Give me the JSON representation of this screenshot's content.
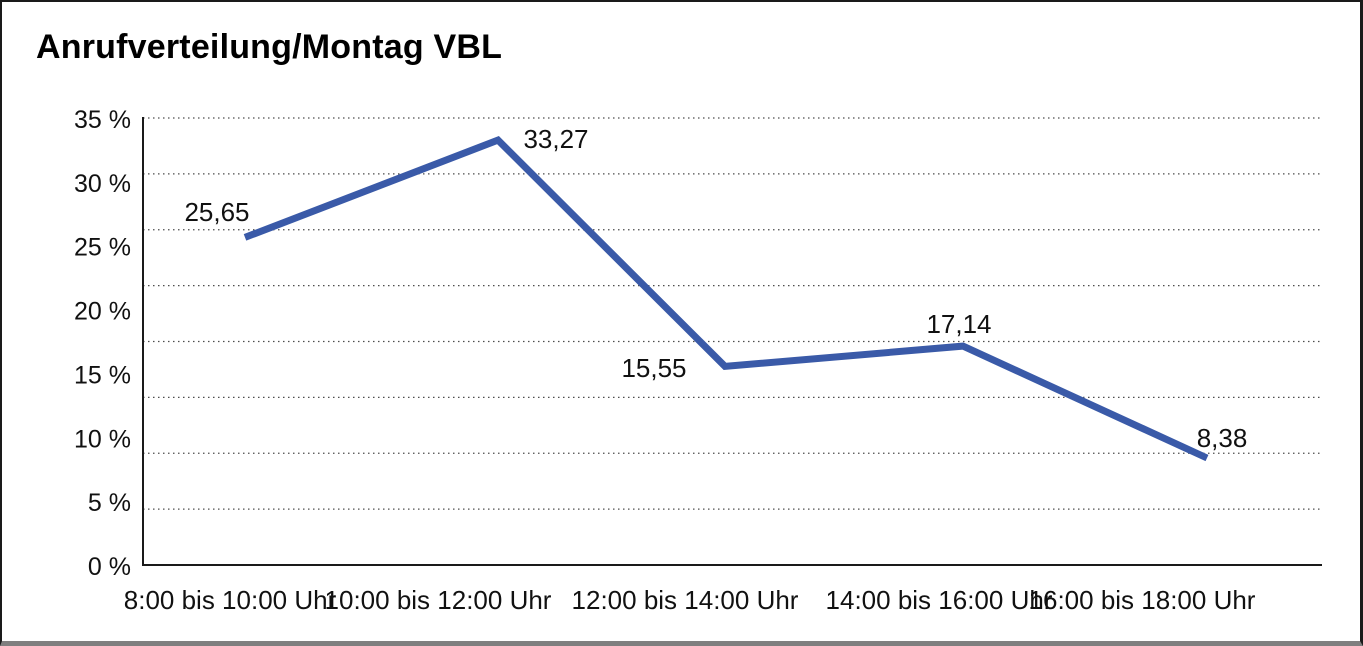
{
  "chart_data": {
    "type": "line",
    "title": "Anrufverteilung/Montag VBL",
    "categories": [
      "8:00 bis 10:00 Uhr",
      "10:00 bis 12:00 Uhr",
      "12:00 bis 14:00 Uhr",
      "14:00 bis 16:00 Uhr",
      "16:00 bis 18:00 Uhr"
    ],
    "values": [
      25.65,
      33.27,
      15.55,
      17.14,
      8.38
    ],
    "point_labels": [
      "25,65",
      "33,27",
      "15,55",
      "17,14",
      "8,38"
    ],
    "y_ticks": [
      "35 %",
      "30 %",
      "25 %",
      "20 %",
      "15 %",
      "10 %",
      "5 %",
      "0 %"
    ],
    "ylim": [
      0,
      35
    ],
    "xlabel": "",
    "ylabel": "",
    "grid": "horizontal-dotted",
    "legend": "none",
    "series_name": "Anrufverteilung Montag VBL",
    "line_color": "#3A5AA8",
    "grid_color": "#4d4d4d",
    "axis_color": "#1a1a1a",
    "text_color": "#111111"
  }
}
